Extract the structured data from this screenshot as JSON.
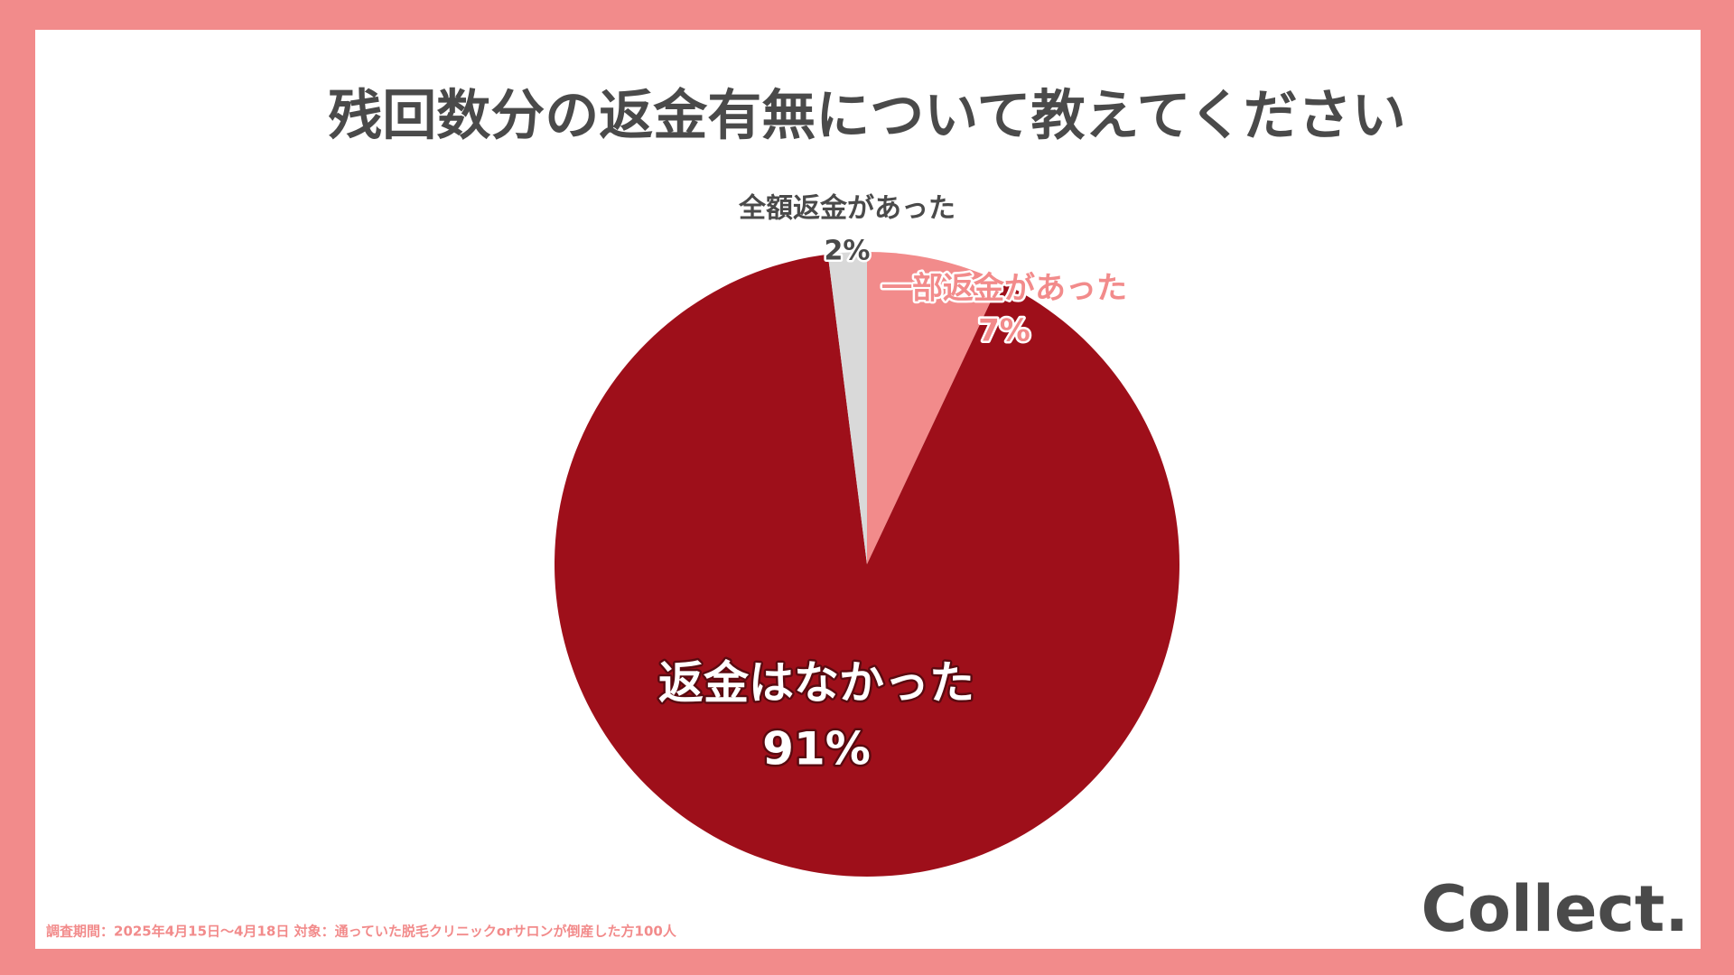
{
  "chart_data": {
    "type": "pie",
    "title": "残回数分の返金有無について教えてください",
    "categories": [
      "一部返金があった",
      "返金はなかった",
      "全額返金があった"
    ],
    "values": [
      7,
      91,
      2
    ],
    "value_labels": [
      "7%",
      "91%",
      "2%"
    ],
    "colors": [
      "#f28b8b",
      "#9e0f1a",
      "#d9d9d9"
    ],
    "footnote": "調査期間：2025年4月15日〜4月18日  対象：通っていた脱毛クリニックorサロンが倒産した方100人",
    "logo": "Collect."
  }
}
